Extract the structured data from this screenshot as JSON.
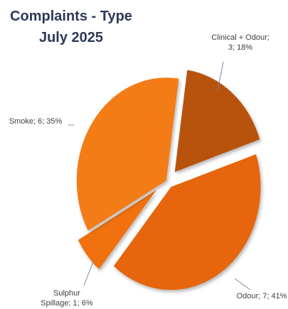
{
  "chart_data": {
    "type": "pie",
    "title_line1": "Complaints  - Type",
    "title_line2": "July 2025",
    "slices": [
      {
        "label": "Clinical + Odour",
        "value": 3,
        "percent": 18,
        "color": "#b85208",
        "explode": 0.24,
        "label_lines": [
          "Clinical + Odour;",
          "3; 18%"
        ]
      },
      {
        "label": "Odour",
        "value": 7,
        "percent": 41,
        "color": "#e6650a",
        "explode": 0.14,
        "label_lines": [
          "Odour; 7; 41%"
        ]
      },
      {
        "label": "Sulphur Spillage",
        "value": 1,
        "percent": 6,
        "color": "#f07110",
        "explode": 0.28,
        "label_lines": [
          "Sulphur",
          "Spillage; 1; 6%"
        ]
      },
      {
        "label": "Smoke",
        "value": 6,
        "percent": 35,
        "color": "#f47b14",
        "explode": 0.02,
        "label_lines": [
          "Smoke; 6; 35%"
        ]
      }
    ]
  }
}
